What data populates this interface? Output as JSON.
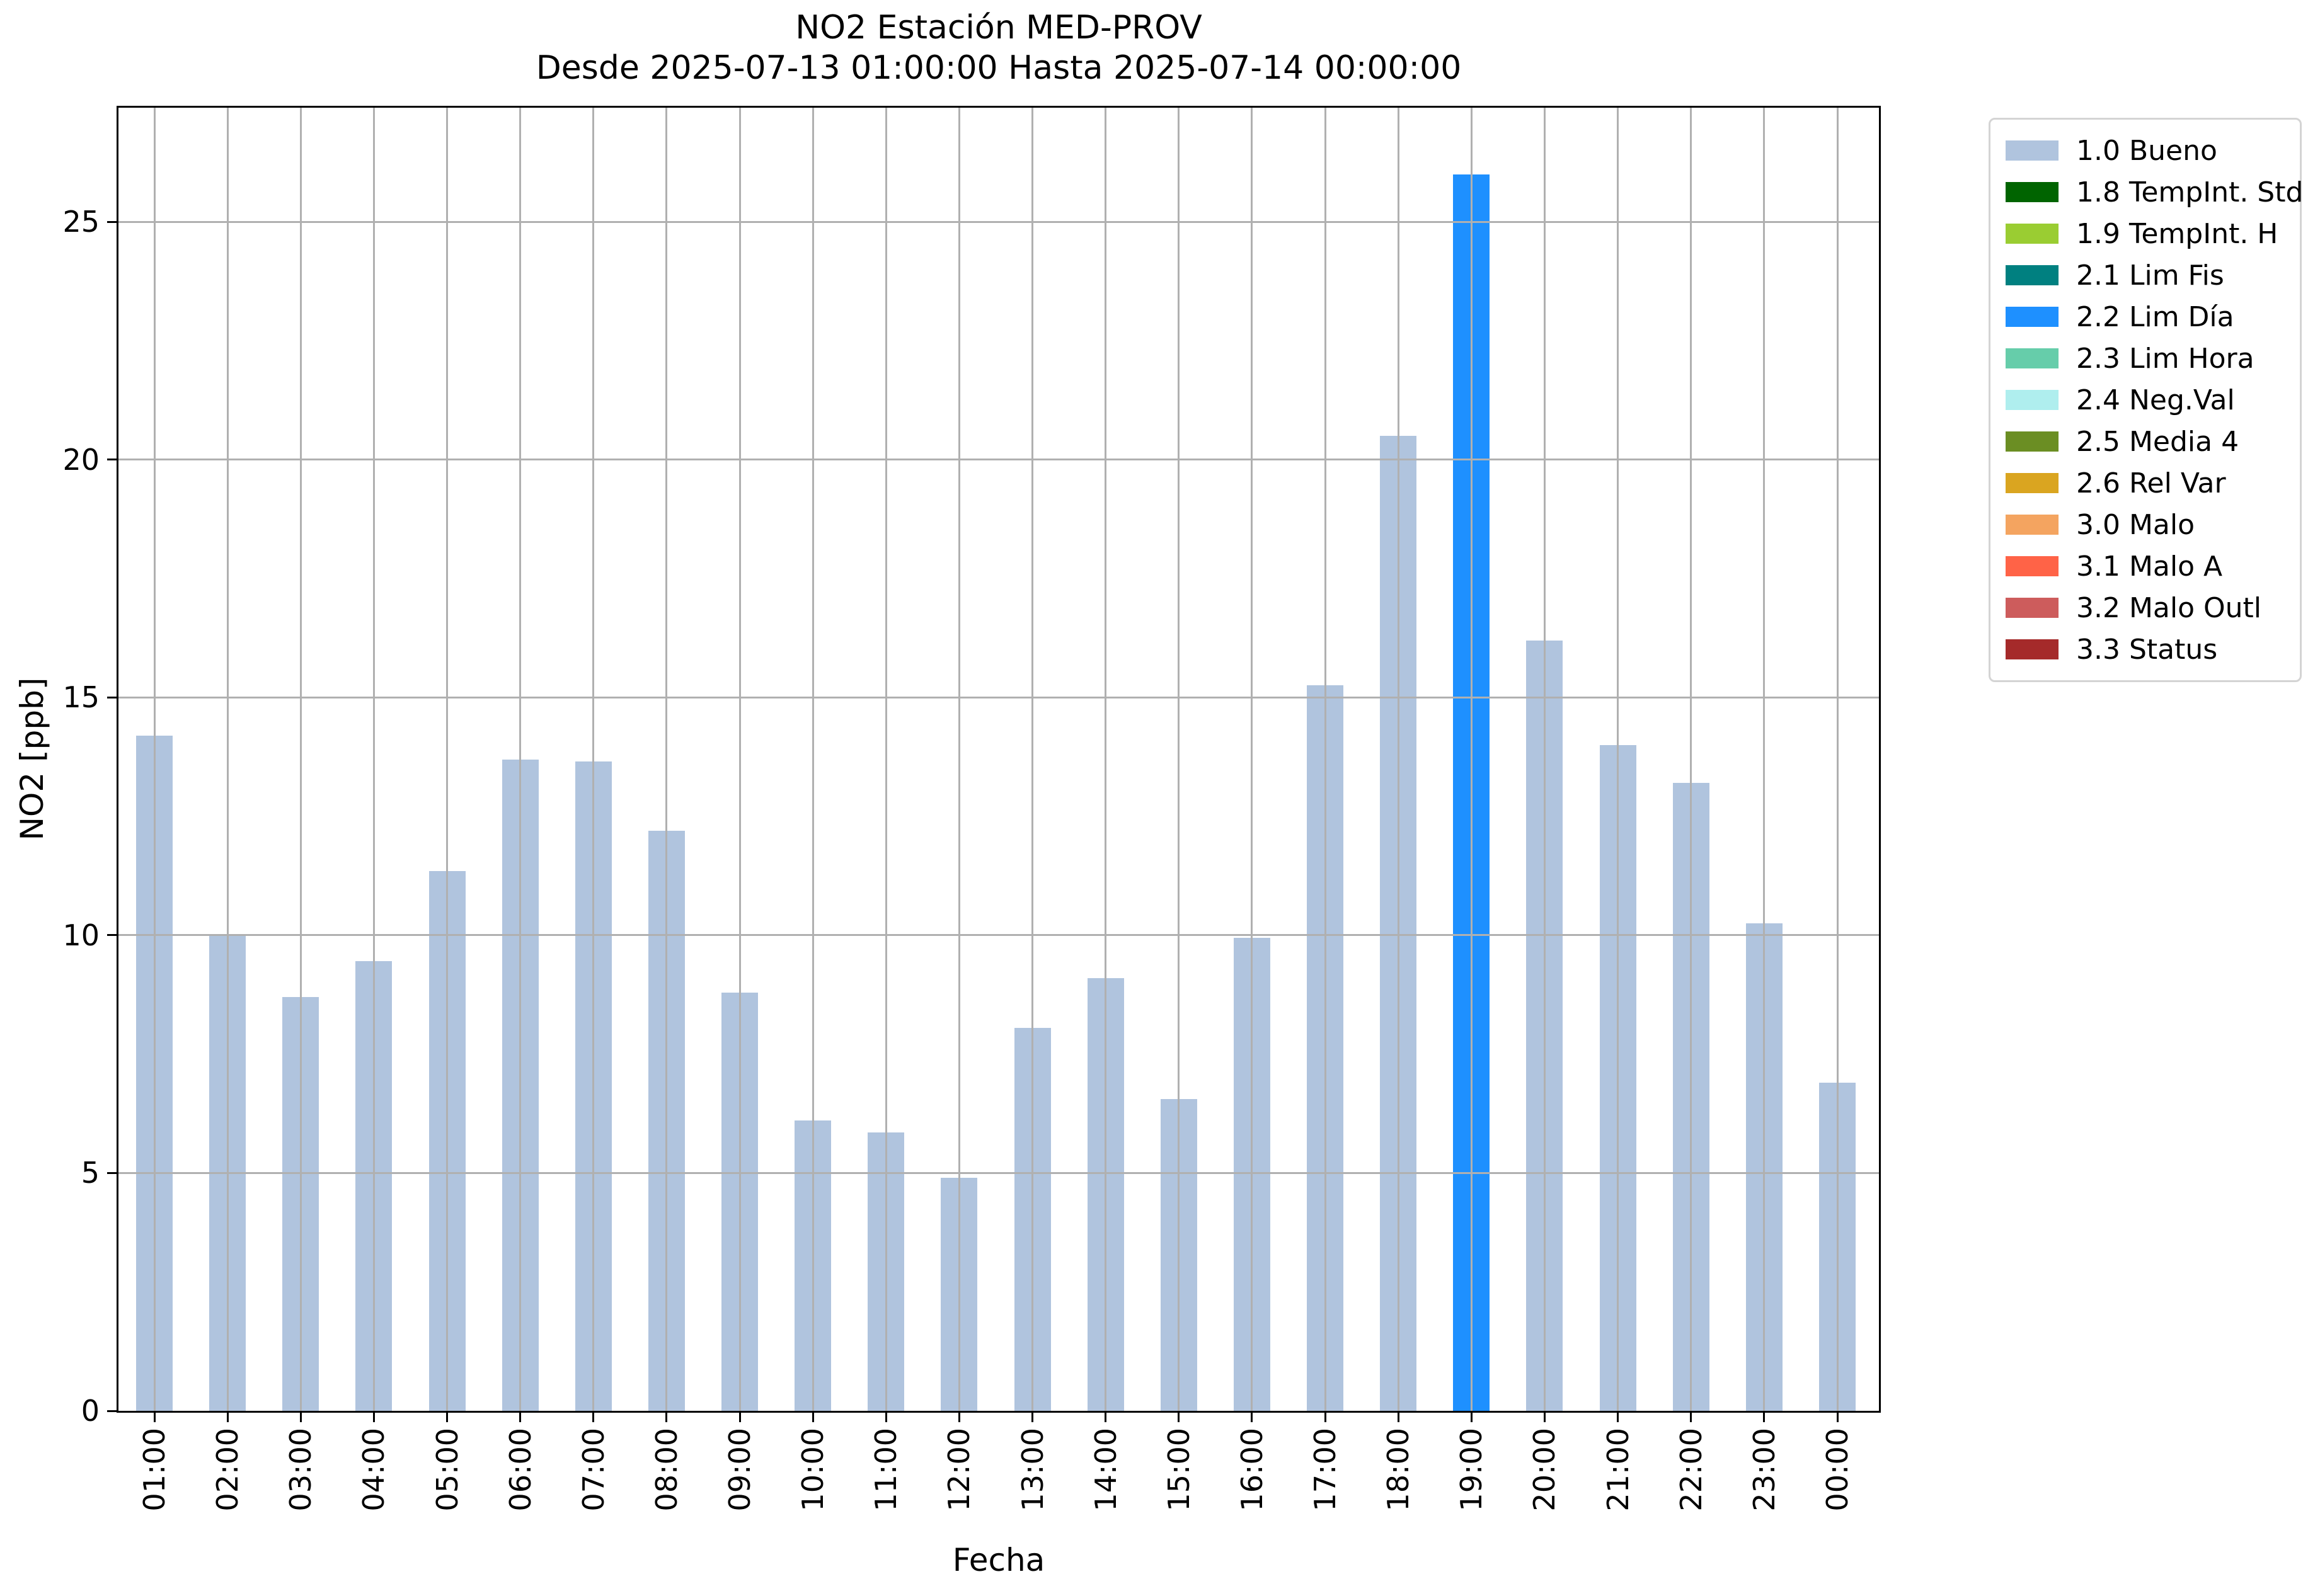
{
  "figure": {
    "background": "#ffffff",
    "title_line1": "NO2 Estación MED-PROV",
    "title_line2": "Desde 2025-07-13 01:00:00 Hasta 2025-07-14 00:00:00"
  },
  "chart_data": {
    "type": "bar",
    "title": "NO2 Estación MED-PROV",
    "subtitle": "Desde 2025-07-13 01:00:00 Hasta 2025-07-14 00:00:00",
    "xlabel": "Fecha",
    "ylabel": "NO2 [ppb]",
    "ylim": [
      0,
      27.4
    ],
    "yticks": [
      0,
      5,
      10,
      15,
      20,
      25
    ],
    "grid": true,
    "grid_color": "#b0b0b0",
    "legend_position": "outside upper right",
    "categories": [
      "01:00",
      "02:00",
      "03:00",
      "04:00",
      "05:00",
      "06:00",
      "07:00",
      "08:00",
      "09:00",
      "10:00",
      "11:00",
      "12:00",
      "13:00",
      "14:00",
      "15:00",
      "16:00",
      "17:00",
      "18:00",
      "19:00",
      "20:00",
      "21:00",
      "22:00",
      "23:00",
      "00:00"
    ],
    "values": [
      14.2,
      10.0,
      8.7,
      9.45,
      11.35,
      13.7,
      13.65,
      12.2,
      8.8,
      6.1,
      5.85,
      4.9,
      8.05,
      9.1,
      6.55,
      9.95,
      15.25,
      20.5,
      26.0,
      16.2,
      14.0,
      13.2,
      10.25,
      6.9
    ],
    "statuses": [
      "1.0 Bueno",
      "1.0 Bueno",
      "1.0 Bueno",
      "1.0 Bueno",
      "1.0 Bueno",
      "1.0 Bueno",
      "1.0 Bueno",
      "1.0 Bueno",
      "1.0 Bueno",
      "1.0 Bueno",
      "1.0 Bueno",
      "1.0 Bueno",
      "1.0 Bueno",
      "1.0 Bueno",
      "1.0 Bueno",
      "1.0 Bueno",
      "1.0 Bueno",
      "1.0 Bueno",
      "2.2 Lim Día",
      "1.0 Bueno",
      "1.0 Bueno",
      "1.0 Bueno",
      "1.0 Bueno",
      "1.0 Bueno"
    ],
    "status_colors": {
      "1.0 Bueno": "#B0C4DE",
      "2.2 Lim Día": "#1E90FF"
    },
    "legend": [
      {
        "label": "1.0 Bueno",
        "color": "#B0C4DE"
      },
      {
        "label": "1.8 TempInt. Std",
        "color": "#006400"
      },
      {
        "label": "1.9 TempInt. H",
        "color": "#9ACD32"
      },
      {
        "label": "2.1 Lim Fis",
        "color": "#008080"
      },
      {
        "label": "2.2 Lim Día",
        "color": "#1E90FF"
      },
      {
        "label": "2.3 Lim Hora",
        "color": "#66CDAA"
      },
      {
        "label": "2.4 Neg.Val",
        "color": "#AFEEEE"
      },
      {
        "label": "2.5 Media 4",
        "color": "#6B8E23"
      },
      {
        "label": "2.6 Rel Var",
        "color": "#DAA520"
      },
      {
        "label": "3.0 Malo",
        "color": "#F4A460"
      },
      {
        "label": "3.1 Malo A",
        "color": "#FF6347"
      },
      {
        "label": "3.2 Malo Outl",
        "color": "#CD5C5C"
      },
      {
        "label": "3.3 Status",
        "color": "#A52A2A"
      }
    ]
  }
}
